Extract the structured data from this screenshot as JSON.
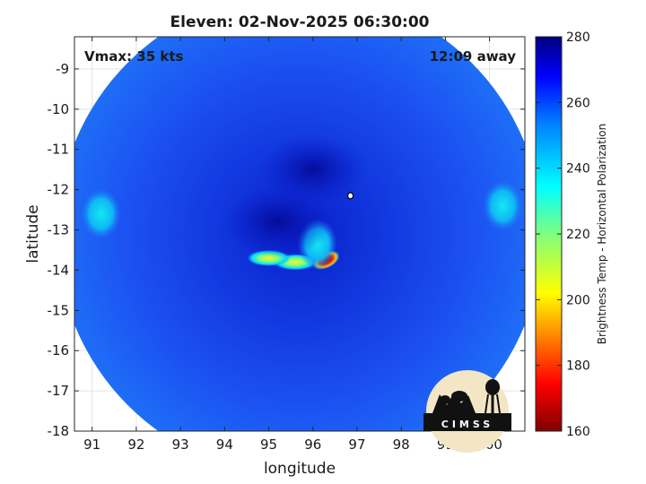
{
  "chart_data": {
    "type": "heatmap",
    "title": "Eleven: 02-Nov-2025 06:30:00",
    "xlabel": "longitude",
    "ylabel": "latitude",
    "xlim": [
      90.6,
      100.8
    ],
    "ylim": [
      -18,
      -8.2
    ],
    "xticks": [
      91,
      92,
      93,
      94,
      95,
      96,
      97,
      98,
      99,
      100
    ],
    "yticks": [
      -9,
      -10,
      -11,
      -12,
      -13,
      -14,
      -15,
      -16,
      -17,
      -18
    ],
    "grid": true,
    "annotations": {
      "vmax": "Vmax: 35 kts",
      "time_away": "12:09 away"
    },
    "colorbar": {
      "label": "Brightness Temp - Horizontal Polarization",
      "range": [
        160,
        280
      ],
      "ticks": [
        280,
        260,
        240,
        220,
        200,
        180,
        160
      ],
      "colormap": "jet"
    },
    "swath": {
      "center": [
        95.7,
        -13.1
      ],
      "radius_deg": 5.5
    },
    "features": [
      {
        "lon": 96.3,
        "lat": -13.75,
        "brightness_temp": 175
      },
      {
        "lon": 95.6,
        "lat": -13.8,
        "brightness_temp": 225
      },
      {
        "lon": 95.0,
        "lat": -13.7,
        "brightness_temp": 228
      },
      {
        "lon": 96.1,
        "lat": -13.35,
        "brightness_temp": 232
      },
      {
        "lon": 91.2,
        "lat": -12.6,
        "brightness_temp": 235
      },
      {
        "lon": 100.3,
        "lat": -12.4,
        "brightness_temp": 240
      },
      {
        "lon": 95.2,
        "lat": -12.8,
        "brightness_temp": 268
      },
      {
        "lon": 96.0,
        "lat": -11.5,
        "brightness_temp": 266
      }
    ],
    "center_marker": {
      "lon": 96.85,
      "lat": -12.15
    }
  },
  "logo": {
    "text": "CIMSS"
  },
  "colors": {
    "background_swath": "#1a44f0",
    "cold_core": "#cc0000",
    "axes_frame": "#262626"
  }
}
